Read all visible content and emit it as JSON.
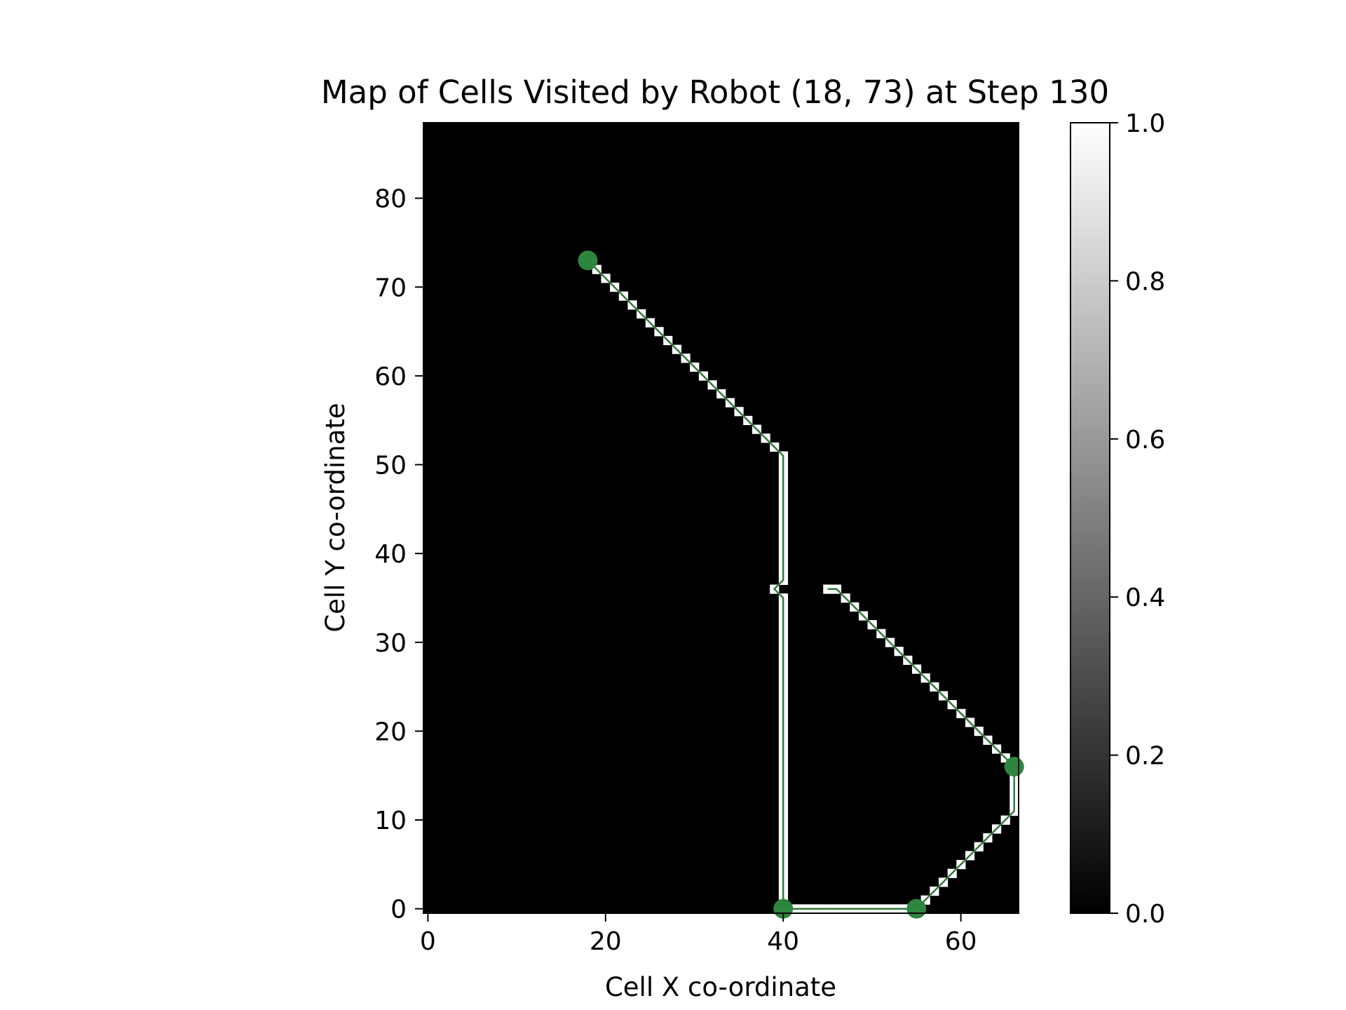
{
  "chart_data": {
    "type": "heatmap",
    "title": "Map of Cells Visited by Robot (18, 73) at Step 130",
    "xlabel": "Cell X co-ordinate",
    "ylabel": "Cell Y co-ordinate",
    "xlim": [
      -0.5,
      66.5
    ],
    "ylim": [
      -0.5,
      88.5
    ],
    "xticks": [
      0,
      20,
      40,
      60
    ],
    "yticks": [
      0,
      10,
      20,
      30,
      40,
      50,
      60,
      70,
      80
    ],
    "colormap": "gray",
    "colorbar": {
      "min": 0.0,
      "max": 1.0,
      "ticks": [
        "0.0",
        "0.2",
        "0.4",
        "0.6",
        "0.8",
        "1.0"
      ]
    },
    "grid": false,
    "background_value": 0.0,
    "visited_value": 1.0,
    "path_color": "#2e7d3a",
    "marker_color": "#2e8540",
    "visited_path": [
      [
        18,
        73
      ],
      [
        40,
        51
      ],
      [
        40,
        37
      ],
      [
        39,
        36
      ],
      [
        40,
        35
      ],
      [
        40,
        0
      ],
      [
        55,
        0
      ],
      [
        66,
        11
      ],
      [
        66,
        16
      ],
      [
        46,
        36
      ],
      [
        45,
        36
      ]
    ],
    "markers": [
      [
        18,
        73
      ],
      [
        40,
        0
      ],
      [
        55,
        0
      ],
      [
        66,
        16
      ]
    ]
  }
}
